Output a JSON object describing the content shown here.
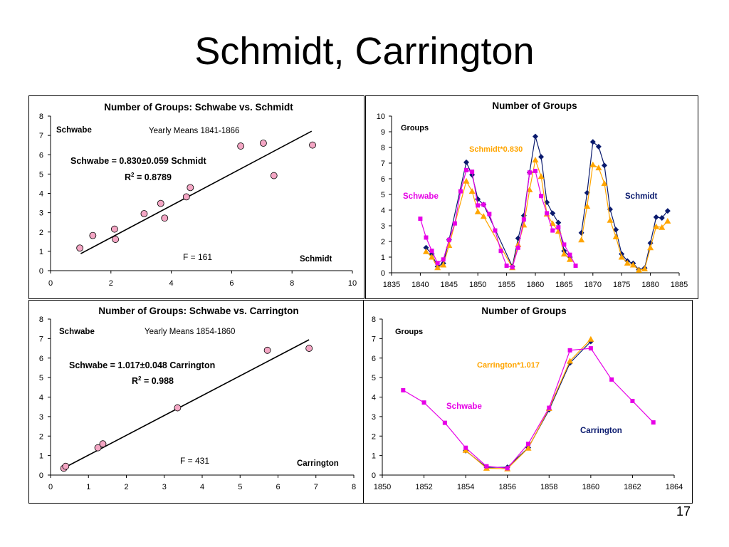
{
  "slide": {
    "title": "Schmidt, Carrington",
    "page_number": "17"
  },
  "chart_data": [
    {
      "id": "p1",
      "type": "scatter",
      "title": "Number of Groups: Schwabe vs. Schmidt",
      "xlim": [
        0,
        10
      ],
      "ylim": [
        0,
        8
      ],
      "x_ticks": [
        "0",
        "2",
        "4",
        "6",
        "8",
        "10"
      ],
      "y_ticks": [
        "0",
        "1",
        "2",
        "3",
        "4",
        "5",
        "6",
        "7",
        "8"
      ],
      "marker_color": "#f4a6c4",
      "points": [
        {
          "x": 0.97,
          "y": 1.17
        },
        {
          "x": 1.4,
          "y": 1.82
        },
        {
          "x": 2.12,
          "y": 2.15
        },
        {
          "x": 2.15,
          "y": 1.62
        },
        {
          "x": 3.1,
          "y": 2.95
        },
        {
          "x": 3.65,
          "y": 3.48
        },
        {
          "x": 3.78,
          "y": 2.72
        },
        {
          "x": 4.5,
          "y": 3.82
        },
        {
          "x": 4.63,
          "y": 4.3
        },
        {
          "x": 6.3,
          "y": 6.45
        },
        {
          "x": 7.05,
          "y": 6.6
        },
        {
          "x": 7.4,
          "y": 4.92
        },
        {
          "x": 8.68,
          "y": 6.5
        }
      ],
      "fit_line": {
        "x1": 1.0,
        "y1": 0.88,
        "x2": 8.65,
        "y2": 7.22
      },
      "annotations": {
        "ylabel_inside": "Schwabe",
        "subtitle": "Yearly Means 1841-1866",
        "equation": "Schwabe = 0.830±0.059 Schmidt",
        "r2_label": "R",
        "r2_sup": "2",
        "r2_value": " = 0.8789",
        "f_stat": "F = 161",
        "xlabel_inside": "Schmidt"
      }
    },
    {
      "id": "p2",
      "type": "line",
      "title": "Number of Groups",
      "xlim": [
        1835,
        1885
      ],
      "ylim": [
        0,
        10
      ],
      "x_ticks": [
        "1835",
        "1840",
        "1845",
        "1850",
        "1855",
        "1860",
        "1865",
        "1870",
        "1875",
        "1880",
        "1885"
      ],
      "y_ticks": [
        "0",
        "1",
        "2",
        "3",
        "4",
        "5",
        "6",
        "7",
        "8",
        "9",
        "10"
      ],
      "series": [
        {
          "name": "Schwabe",
          "color": "#e600e6",
          "marker": "square",
          "segments": [
            [
              [
                1840,
                3.45
              ],
              [
                1841,
                2.25
              ],
              [
                1842,
                1.4
              ],
              [
                1843,
                0.62
              ],
              [
                1844,
                0.85
              ],
              [
                1845,
                2.1
              ],
              [
                1846,
                3.15
              ],
              [
                1847,
                5.2
              ],
              [
                1848,
                6.55
              ],
              [
                1849,
                6.45
              ],
              [
                1850,
                4.3
              ],
              [
                1851,
                4.35
              ],
              [
                1852,
                3.75
              ],
              [
                1853,
                2.7
              ],
              [
                1854,
                1.4
              ],
              [
                1855,
                0.45
              ],
              [
                1856,
                0.35
              ],
              [
                1857,
                1.6
              ],
              [
                1858,
                3.4
              ],
              [
                1859,
                6.4
              ],
              [
                1860,
                6.5
              ],
              [
                1861,
                4.9
              ],
              [
                1862,
                3.8
              ],
              [
                1863,
                2.7
              ],
              [
                1864,
                2.9
              ],
              [
                1865,
                1.8
              ],
              [
                1866,
                1.15
              ],
              [
                1867,
                0.45
              ]
            ]
          ]
        },
        {
          "name": "Schmidt",
          "color": "#0a1a6e",
          "marker": "diamond",
          "segments": [
            [
              [
                1841,
                1.6
              ],
              [
                1842,
                1.2
              ],
              [
                1843,
                0.4
              ],
              [
                1844,
                0.6
              ],
              [
                1845,
                2.1
              ],
              [
                1848,
                7.05
              ],
              [
                1849,
                6.25
              ],
              [
                1850,
                4.7
              ],
              [
                1851,
                4.35
              ],
              [
                1856,
                0.4
              ],
              [
                1857,
                2.2
              ],
              [
                1858,
                3.65
              ],
              [
                1859,
                6.4
              ],
              [
                1860,
                8.7
              ],
              [
                1861,
                7.4
              ],
              [
                1862,
                4.5
              ],
              [
                1863,
                3.8
              ],
              [
                1864,
                3.2
              ],
              [
                1865,
                1.4
              ],
              [
                1866,
                1.0
              ]
            ],
            [
              [
                1868,
                2.55
              ],
              [
                1869,
                5.1
              ],
              [
                1870,
                8.35
              ],
              [
                1871,
                8.05
              ],
              [
                1872,
                6.85
              ],
              [
                1873,
                4.05
              ],
              [
                1874,
                2.75
              ],
              [
                1875,
                1.2
              ],
              [
                1876,
                0.75
              ],
              [
                1877,
                0.6
              ],
              [
                1878,
                0.2
              ],
              [
                1879,
                0.3
              ],
              [
                1880,
                1.9
              ],
              [
                1881,
                3.55
              ],
              [
                1882,
                3.5
              ],
              [
                1883,
                3.95
              ]
            ]
          ]
        },
        {
          "name": "Schmidt*0.830",
          "color": "#ffa500",
          "marker": "triangle",
          "segments": [
            [
              [
                1841,
                1.35
              ],
              [
                1842,
                1.0
              ],
              [
                1843,
                0.33
              ],
              [
                1844,
                0.5
              ],
              [
                1845,
                1.75
              ],
              [
                1848,
                5.85
              ],
              [
                1849,
                5.2
              ],
              [
                1850,
                3.9
              ],
              [
                1851,
                3.6
              ],
              [
                1856,
                0.33
              ],
              [
                1857,
                1.8
              ],
              [
                1858,
                3.05
              ],
              [
                1859,
                5.3
              ],
              [
                1860,
                7.2
              ],
              [
                1861,
                6.15
              ],
              [
                1862,
                3.75
              ],
              [
                1863,
                3.15
              ],
              [
                1864,
                2.65
              ],
              [
                1865,
                1.2
              ],
              [
                1866,
                0.85
              ]
            ],
            [
              [
                1868,
                2.1
              ],
              [
                1869,
                4.25
              ],
              [
                1870,
                6.9
              ],
              [
                1871,
                6.7
              ],
              [
                1872,
                5.7
              ],
              [
                1873,
                3.35
              ],
              [
                1874,
                2.3
              ],
              [
                1875,
                1.0
              ],
              [
                1876,
                0.62
              ],
              [
                1877,
                0.5
              ],
              [
                1878,
                0.17
              ],
              [
                1879,
                0.25
              ],
              [
                1880,
                1.6
              ],
              [
                1881,
                2.95
              ],
              [
                1882,
                2.9
              ],
              [
                1883,
                3.3
              ]
            ]
          ]
        }
      ],
      "annotations": {
        "ylabel_inside": "Groups",
        "label_scaled": "Schmidt*0.830",
        "label_schwabe": "Schwabe",
        "label_other": "Schmidt"
      }
    },
    {
      "id": "p3",
      "type": "scatter",
      "title": "Number of Groups: Schwabe vs. Carrington",
      "xlim": [
        0,
        8
      ],
      "ylim": [
        0,
        8
      ],
      "x_ticks": [
        "0",
        "1",
        "2",
        "3",
        "4",
        "5",
        "6",
        "7",
        "8"
      ],
      "y_ticks": [
        "0",
        "1",
        "2",
        "3",
        "4",
        "5",
        "6",
        "7",
        "8"
      ],
      "marker_color": "#f4a6c4",
      "points": [
        {
          "x": 0.35,
          "y": 0.35
        },
        {
          "x": 0.4,
          "y": 0.45
        },
        {
          "x": 1.25,
          "y": 1.4
        },
        {
          "x": 1.38,
          "y": 1.6
        },
        {
          "x": 3.35,
          "y": 3.45
        },
        {
          "x": 5.72,
          "y": 6.4
        },
        {
          "x": 6.82,
          "y": 6.5
        }
      ],
      "fit_line": {
        "x1": 0.35,
        "y1": 0.36,
        "x2": 6.82,
        "y2": 6.94
      },
      "annotations": {
        "ylabel_inside": "Schwabe",
        "subtitle": "Yearly Means 1854-1860",
        "equation": "Schwabe = 1.017±0.048 Carrington",
        "r2_label": "R",
        "r2_sup": "2",
        "r2_value": " = 0.988",
        "f_stat": "F = 431",
        "xlabel_inside": "Carrington"
      }
    },
    {
      "id": "p4",
      "type": "line",
      "title": "Number of Groups",
      "xlim": [
        1850,
        1864
      ],
      "ylim": [
        0,
        8
      ],
      "x_ticks": [
        "1850",
        "1852",
        "1854",
        "1856",
        "1858",
        "1860",
        "1862",
        "1864"
      ],
      "y_ticks": [
        "0",
        "1",
        "2",
        "3",
        "4",
        "5",
        "6",
        "7",
        "8"
      ],
      "series": [
        {
          "name": "Schwabe",
          "color": "#e600e6",
          "marker": "square",
          "segments": [
            [
              [
                1851,
                4.35
              ],
              [
                1852,
                3.72
              ],
              [
                1853,
                2.68
              ],
              [
                1854,
                1.4
              ],
              [
                1855,
                0.45
              ],
              [
                1856,
                0.35
              ],
              [
                1857,
                1.6
              ],
              [
                1858,
                3.45
              ],
              [
                1859,
                6.4
              ],
              [
                1860,
                6.5
              ],
              [
                1861,
                4.9
              ],
              [
                1862,
                3.8
              ],
              [
                1863,
                2.7
              ]
            ]
          ]
        },
        {
          "name": "Carrington",
          "color": "#0a1a6e",
          "marker": "diamond",
          "segments": [
            [
              [
                1854,
                1.25
              ],
              [
                1855,
                0.4
              ],
              [
                1856,
                0.4
              ],
              [
                1857,
                1.4
              ],
              [
                1858,
                3.35
              ],
              [
                1859,
                5.75
              ],
              [
                1860,
                6.85
              ]
            ]
          ]
        },
        {
          "name": "Carrington*1.017",
          "color": "#ffa500",
          "marker": "triangle",
          "segments": [
            [
              [
                1854,
                1.27
              ],
              [
                1855,
                0.35
              ],
              [
                1856,
                0.32
              ],
              [
                1857,
                1.38
              ],
              [
                1858,
                3.42
              ],
              [
                1859,
                5.85
              ],
              [
                1860,
                6.97
              ]
            ]
          ]
        }
      ],
      "annotations": {
        "ylabel_inside": "Groups",
        "label_scaled": "Carrington*1.017",
        "label_schwabe": "Schwabe",
        "label_other": "Carrington"
      }
    }
  ]
}
